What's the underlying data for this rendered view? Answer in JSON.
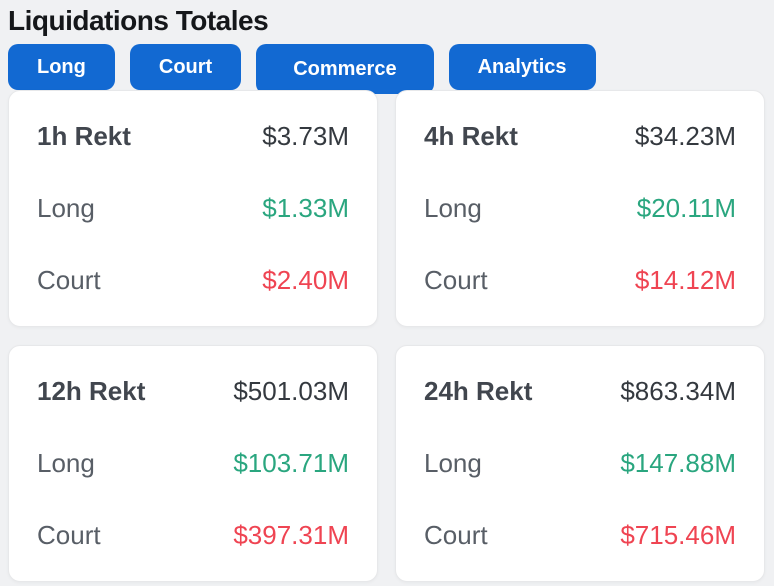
{
  "page": {
    "title": "Liquidations Totales"
  },
  "colors": {
    "accent_blue": "#1269d2",
    "long_green": "#2aa67f",
    "short_red": "#ef4452",
    "page_background": "#f0f1f3",
    "card_background": "#ffffff"
  },
  "tabs": [
    {
      "label": "Long",
      "active": false
    },
    {
      "label": "Court",
      "active": false
    },
    {
      "label": "Commerce",
      "active": true
    },
    {
      "label": "Analytics",
      "active": false
    }
  ],
  "cards": [
    {
      "period": "1h Rekt",
      "total": "$3.73M",
      "long_label": "Long",
      "long_value": "$1.33M",
      "short_label": "Court",
      "short_value": "$2.40M"
    },
    {
      "period": "4h Rekt",
      "total": "$34.23M",
      "long_label": "Long",
      "long_value": "$20.11M",
      "short_label": "Court",
      "short_value": "$14.12M"
    },
    {
      "period": "12h Rekt",
      "total": "$501.03M",
      "long_label": "Long",
      "long_value": "$103.71M",
      "short_label": "Court",
      "short_value": "$397.31M"
    },
    {
      "period": "24h Rekt",
      "total": "$863.34M",
      "long_label": "Long",
      "long_value": "$147.88M",
      "short_label": "Court",
      "short_value": "$715.46M"
    }
  ]
}
